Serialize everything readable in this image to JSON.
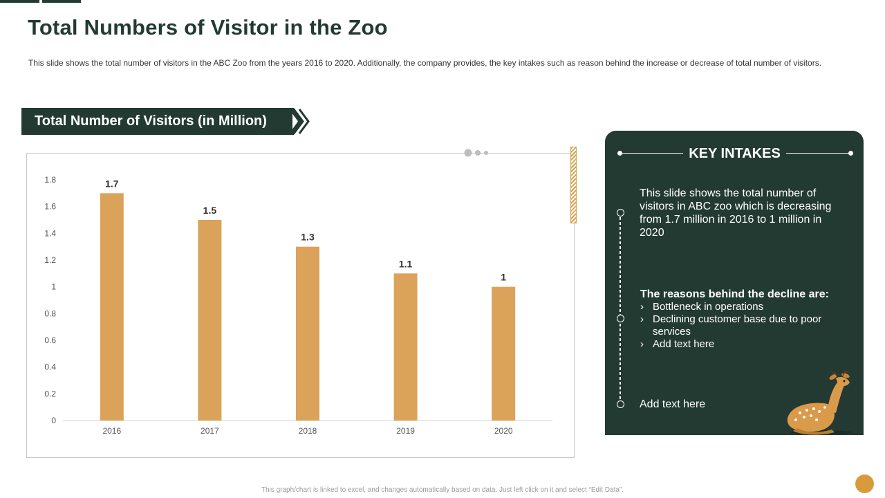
{
  "page": {
    "title": "Total Numbers of Visitor in the Zoo",
    "description": "This slide shows the total number of visitors in the ABC Zoo from the years 2016 to 2020. Additionally, the company provides,  the key intakes such as reason behind the increase or decrease of total number of visitors.",
    "footer_note": "This graph/chart is linked to excel, and changes automatically based on data. Just left click on it and select “Edit Data”."
  },
  "chart_banner": "Total Number of Visitors (in Million)",
  "chart_data": {
    "type": "bar",
    "categories": [
      "2016",
      "2017",
      "2018",
      "2019",
      "2020"
    ],
    "values": [
      1.7,
      1.5,
      1.3,
      1.1,
      1
    ],
    "data_labels": [
      "1.7",
      "1.5",
      "1.3",
      "1.1",
      "1"
    ],
    "yticks": [
      "0",
      "0.2",
      "0.4",
      "0.6",
      "0.8",
      "1",
      "1.2",
      "1.4",
      "1.6",
      "1.8"
    ],
    "ylim": [
      0,
      1.8
    ],
    "xlabel": "",
    "ylabel": "",
    "grid": false,
    "legend": "none",
    "bar_color": "#dba35a"
  },
  "key_intakes": {
    "title": "KEY INTAKES",
    "summary": "This slide shows the total number of visitors in ABC zoo which is decreasing from 1.7 million in 2016 to 1 million in 2020",
    "reasons_heading": "The reasons behind the decline are:",
    "reasons": [
      "Bottleneck in operations",
      "Declining customer base due to poor services",
      "Add text here"
    ],
    "closing": "Add text here",
    "illustration": "deer-icon"
  },
  "colors": {
    "brand_dark": "#233a32",
    "accent": "#dba35a",
    "corner": "#d89a3b"
  }
}
